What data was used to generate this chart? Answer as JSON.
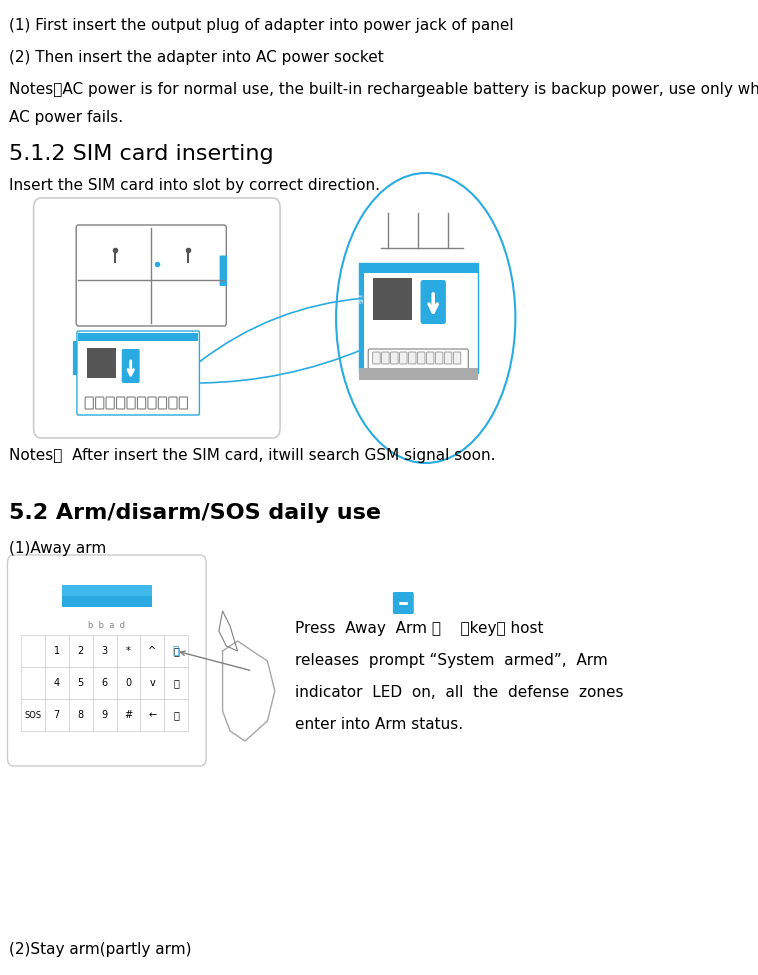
{
  "bg_color": "#ffffff",
  "text_color": "#000000",
  "blue_color": "#29abe2",
  "gray_color": "#808080",
  "light_gray": "#cccccc",
  "dark_gray": "#555555",
  "line1": "(1) First insert the output plug of adapter into power jack of panel",
  "line2": "(2) Then insert the adapter into AC power socket",
  "line3": "Notes：AC power is for normal use, the built-in rechargeable battery is backup power, use only when",
  "line4": "AC power fails.",
  "heading1": "5.1.2 SIM card inserting",
  "line5": "Insert the SIM card into slot by correct direction.",
  "notes2": "Notes：  After insert the SIM card, itwill search GSM signal soon.",
  "heading2": "5.2 Arm/disarm/SOS daily use",
  "line6": "(1)Away arm",
  "press_text1": "Press  Away  Arm 【    】key， host",
  "press_text2": "releases  prompt “System  armed”,  Arm",
  "press_text3": "indicator  LED  on,  all  the  defense  zones",
  "press_text4": "enter into Arm status.",
  "line7": "(2)Stay arm(partly arm)"
}
